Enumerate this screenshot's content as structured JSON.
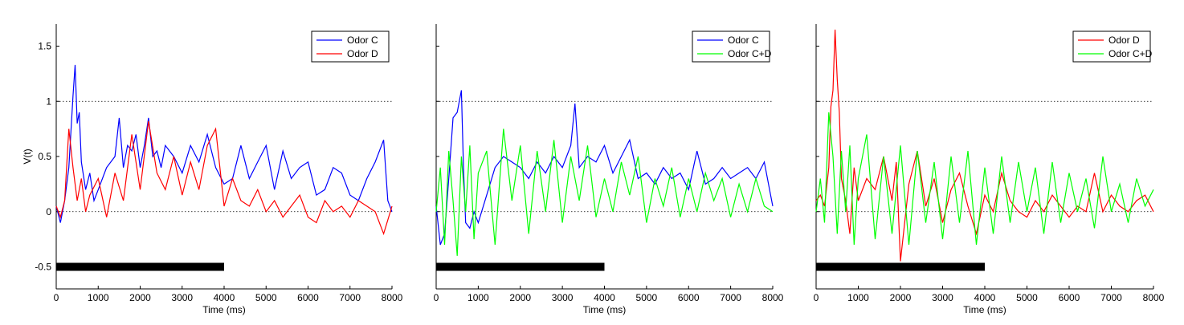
{
  "chart_data": [
    {
      "type": "line",
      "panel": "left",
      "xlabel": "Time (ms)",
      "ylabel": "V(t)",
      "xlim": [
        0,
        8000
      ],
      "ylim": [
        -0.7,
        1.7
      ],
      "x_ticks": [
        0,
        1000,
        2000,
        3000,
        4000,
        5000,
        6000,
        7000,
        8000
      ],
      "y_ticks": [
        -0.5,
        0,
        0.5,
        1,
        1.5
      ],
      "legend": "top-right",
      "reference_lines": [
        0,
        1
      ],
      "stimulus_bar": {
        "start": 0,
        "end": 4000,
        "y": -0.5
      },
      "series": [
        {
          "name": "Odor C",
          "color": "#0000ff",
          "x": [
            0,
            100,
            200,
            300,
            400,
            450,
            500,
            550,
            600,
            700,
            800,
            900,
            1000,
            1200,
            1400,
            1500,
            1600,
            1700,
            1800,
            1900,
            2000,
            2100,
            2200,
            2300,
            2400,
            2500,
            2600,
            2800,
            3000,
            3200,
            3400,
            3600,
            3800,
            4000,
            4200,
            4400,
            4600,
            4800,
            5000,
            5200,
            5400,
            5600,
            5800,
            6000,
            6200,
            6400,
            6600,
            6800,
            7000,
            7200,
            7400,
            7600,
            7800,
            7900,
            8000
          ],
          "y": [
            0.05,
            -0.1,
            0.1,
            0.4,
            1.05,
            1.33,
            0.8,
            0.9,
            0.45,
            0.2,
            0.35,
            0.1,
            0.2,
            0.4,
            0.5,
            0.85,
            0.4,
            0.6,
            0.55,
            0.7,
            0.4,
            0.6,
            0.85,
            0.5,
            0.55,
            0.4,
            0.6,
            0.5,
            0.35,
            0.6,
            0.45,
            0.7,
            0.4,
            0.25,
            0.3,
            0.6,
            0.3,
            0.45,
            0.6,
            0.2,
            0.55,
            0.3,
            0.4,
            0.45,
            0.15,
            0.2,
            0.4,
            0.35,
            0.15,
            0.1,
            0.3,
            0.45,
            0.65,
            0.1,
            0.0
          ]
        },
        {
          "name": "Odor D",
          "color": "#ff0000",
          "x": [
            0,
            100,
            200,
            300,
            400,
            500,
            600,
            700,
            800,
            1000,
            1200,
            1400,
            1600,
            1800,
            2000,
            2200,
            2400,
            2600,
            2800,
            3000,
            3200,
            3400,
            3600,
            3800,
            4000,
            4200,
            4400,
            4600,
            4800,
            5000,
            5200,
            5400,
            5600,
            5800,
            6000,
            6200,
            6400,
            6600,
            6800,
            7000,
            7200,
            7400,
            7600,
            7800,
            8000
          ],
          "y": [
            0.05,
            -0.05,
            0.1,
            0.75,
            0.4,
            0.1,
            0.3,
            0.0,
            0.15,
            0.3,
            -0.05,
            0.35,
            0.1,
            0.7,
            0.2,
            0.82,
            0.35,
            0.2,
            0.5,
            0.15,
            0.45,
            0.2,
            0.6,
            0.75,
            0.05,
            0.3,
            0.1,
            0.05,
            0.2,
            0.0,
            0.1,
            -0.05,
            0.05,
            0.15,
            -0.05,
            -0.1,
            0.1,
            0.0,
            0.05,
            -0.05,
            0.1,
            0.05,
            0.0,
            -0.2,
            0.05
          ]
        }
      ]
    },
    {
      "type": "line",
      "panel": "middle",
      "xlabel": "Time (ms)",
      "ylabel": "",
      "xlim": [
        0,
        8000
      ],
      "ylim": [
        -0.7,
        1.7
      ],
      "x_ticks": [
        0,
        1000,
        2000,
        3000,
        4000,
        5000,
        6000,
        7000,
        8000
      ],
      "legend": "top-right",
      "reference_lines": [
        0,
        1
      ],
      "stimulus_bar": {
        "start": 0,
        "end": 4000,
        "y": -0.5
      },
      "series": [
        {
          "name": "Odor C",
          "color": "#0000ff",
          "x": [
            0,
            100,
            200,
            300,
            400,
            500,
            600,
            650,
            700,
            800,
            900,
            1000,
            1200,
            1400,
            1600,
            1800,
            2000,
            2200,
            2400,
            2600,
            2800,
            3000,
            3200,
            3300,
            3400,
            3600,
            3800,
            4000,
            4200,
            4400,
            4600,
            4800,
            5000,
            5200,
            5400,
            5600,
            5800,
            6000,
            6200,
            6400,
            6600,
            6800,
            7000,
            7200,
            7400,
            7600,
            7800,
            8000
          ],
          "y": [
            0.05,
            -0.3,
            -0.2,
            0.3,
            0.85,
            0.9,
            1.1,
            0.4,
            -0.1,
            -0.15,
            0.0,
            -0.1,
            0.15,
            0.4,
            0.5,
            0.45,
            0.4,
            0.3,
            0.45,
            0.35,
            0.5,
            0.4,
            0.6,
            0.98,
            0.4,
            0.5,
            0.45,
            0.6,
            0.35,
            0.5,
            0.65,
            0.3,
            0.35,
            0.25,
            0.4,
            0.3,
            0.35,
            0.2,
            0.55,
            0.25,
            0.3,
            0.4,
            0.3,
            0.35,
            0.4,
            0.3,
            0.45,
            0.05
          ]
        },
        {
          "name": "Odor C+D",
          "color": "#00ff00",
          "x": [
            0,
            100,
            200,
            300,
            400,
            500,
            600,
            700,
            800,
            900,
            1000,
            1200,
            1400,
            1600,
            1800,
            2000,
            2200,
            2400,
            2600,
            2800,
            3000,
            3200,
            3400,
            3600,
            3800,
            4000,
            4200,
            4400,
            4600,
            4800,
            5000,
            5200,
            5400,
            5600,
            5800,
            6000,
            6200,
            6400,
            6600,
            6800,
            7000,
            7200,
            7400,
            7600,
            7800,
            8000
          ],
          "y": [
            0.0,
            0.4,
            -0.3,
            0.55,
            0.1,
            -0.4,
            0.5,
            0.0,
            0.6,
            -0.25,
            0.35,
            0.55,
            -0.3,
            0.75,
            0.1,
            0.6,
            -0.2,
            0.55,
            0.0,
            0.65,
            -0.1,
            0.5,
            0.1,
            0.6,
            -0.05,
            0.3,
            0.0,
            0.45,
            0.15,
            0.5,
            -0.1,
            0.3,
            0.05,
            0.4,
            -0.05,
            0.3,
            0.0,
            0.35,
            0.1,
            0.3,
            -0.05,
            0.25,
            0.0,
            0.3,
            0.05,
            0.0
          ]
        }
      ]
    },
    {
      "type": "line",
      "panel": "right",
      "xlabel": "Time (ms)",
      "ylabel": "",
      "xlim": [
        0,
        8000
      ],
      "ylim": [
        -0.7,
        1.7
      ],
      "x_ticks": [
        0,
        1000,
        2000,
        3000,
        4000,
        5000,
        6000,
        7000,
        8000
      ],
      "legend": "top-right",
      "reference_lines": [
        0,
        1
      ],
      "stimulus_bar": {
        "start": 0,
        "end": 4000,
        "y": -0.5
      },
      "series": [
        {
          "name": "Odor D",
          "color": "#ff0000",
          "x": [
            0,
            100,
            200,
            300,
            350,
            400,
            450,
            500,
            550,
            600,
            700,
            800,
            900,
            1000,
            1200,
            1400,
            1600,
            1800,
            1900,
            2000,
            2200,
            2400,
            2600,
            2800,
            3000,
            3200,
            3400,
            3600,
            3800,
            4000,
            4200,
            4400,
            4600,
            4800,
            5000,
            5200,
            5400,
            5600,
            5800,
            6000,
            6200,
            6400,
            6600,
            6800,
            7000,
            7200,
            7400,
            7600,
            7800,
            8000
          ],
          "y": [
            0.1,
            0.15,
            0.05,
            0.4,
            0.95,
            1.1,
            1.65,
            1.2,
            0.9,
            0.3,
            0.1,
            -0.2,
            0.4,
            0.1,
            0.3,
            0.2,
            0.5,
            0.1,
            0.45,
            -0.45,
            0.25,
            0.55,
            0.05,
            0.3,
            -0.1,
            0.2,
            0.35,
            0.05,
            -0.2,
            0.15,
            0.0,
            0.35,
            0.1,
            0.0,
            -0.05,
            0.1,
            0.0,
            0.15,
            0.05,
            -0.05,
            0.05,
            0.0,
            0.35,
            0.0,
            0.15,
            0.05,
            0.0,
            0.1,
            0.15,
            0.0
          ]
        },
        {
          "name": "Odor C+D",
          "color": "#00ff00",
          "x": [
            0,
            100,
            200,
            300,
            400,
            500,
            600,
            700,
            800,
            900,
            1000,
            1200,
            1400,
            1600,
            1800,
            2000,
            2200,
            2400,
            2600,
            2800,
            3000,
            3200,
            3400,
            3600,
            3800,
            4000,
            4200,
            4400,
            4600,
            4800,
            5000,
            5200,
            5400,
            5600,
            5800,
            6000,
            6200,
            6400,
            6600,
            6800,
            7000,
            7200,
            7400,
            7600,
            7800,
            8000
          ],
          "y": [
            0.0,
            0.3,
            -0.1,
            0.9,
            0.5,
            -0.2,
            0.55,
            0.0,
            0.6,
            -0.3,
            0.3,
            0.7,
            -0.25,
            0.5,
            -0.2,
            0.6,
            -0.3,
            0.55,
            -0.1,
            0.45,
            -0.25,
            0.5,
            -0.1,
            0.55,
            -0.3,
            0.4,
            -0.2,
            0.5,
            -0.1,
            0.45,
            0.0,
            0.4,
            -0.2,
            0.45,
            -0.1,
            0.35,
            0.0,
            0.3,
            -0.15,
            0.5,
            0.0,
            0.25,
            -0.1,
            0.3,
            0.05,
            0.2
          ]
        }
      ]
    }
  ]
}
